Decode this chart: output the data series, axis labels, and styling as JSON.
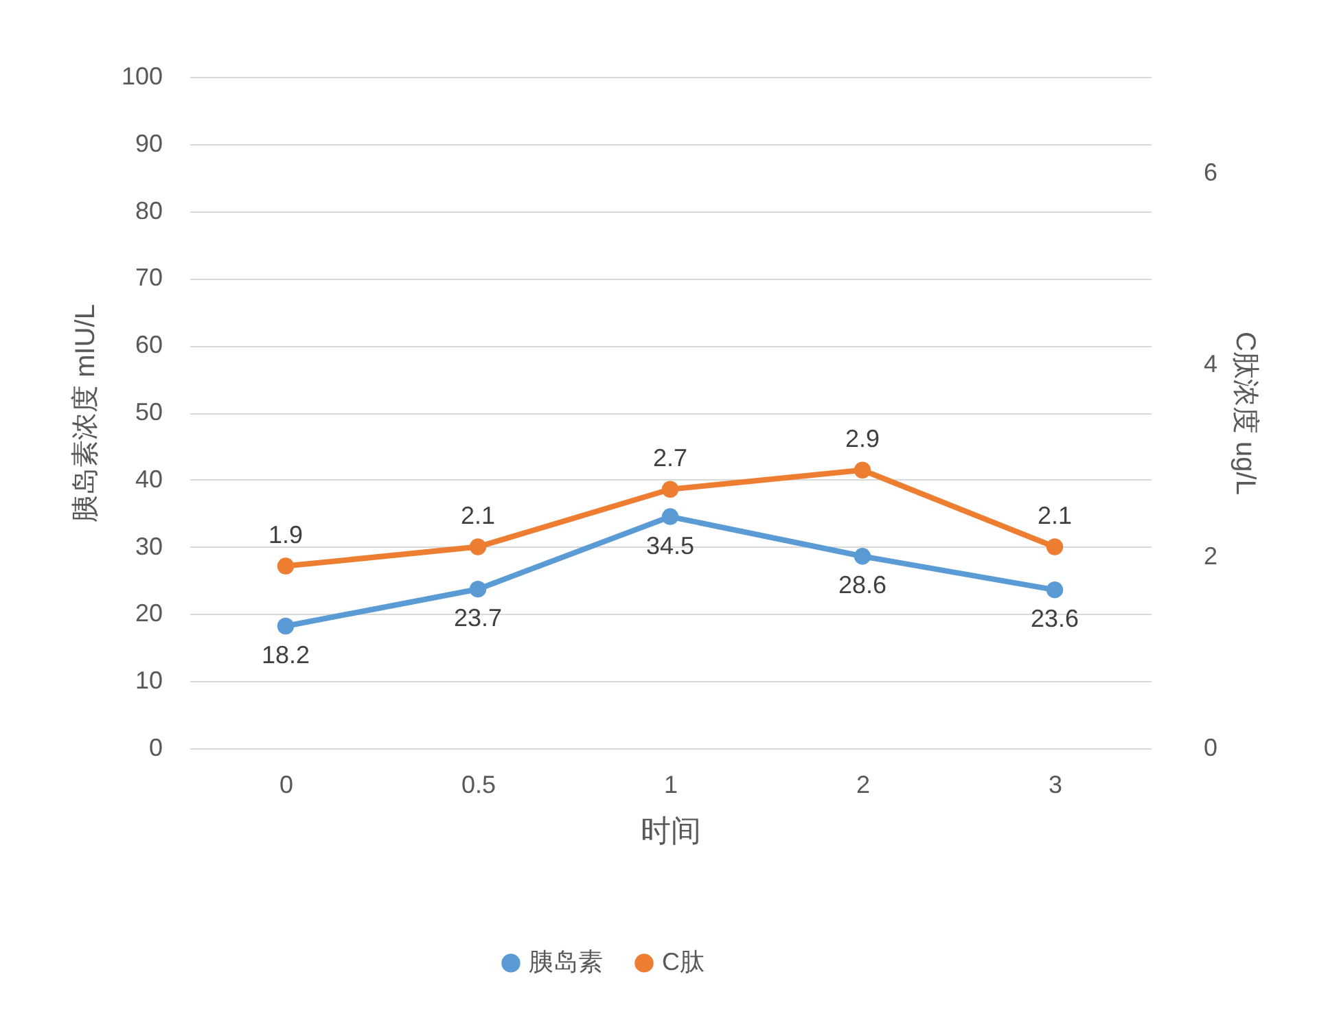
{
  "chart_data": {
    "type": "line",
    "xlabel": "时间",
    "ylabel": "胰岛素浓度   mIU/L",
    "y2label": "C肽浓度   ug/L",
    "categories": [
      "0",
      "0.5",
      "1",
      "2",
      "3"
    ],
    "series": [
      {
        "name": "胰岛素",
        "color": "#5b9bd5",
        "values": [
          18.2,
          23.7,
          34.5,
          28.6,
          23.6
        ]
      },
      {
        "name": "C肽",
        "color": "#ed7d31",
        "values": [
          1.9,
          2.1,
          2.7,
          2.9,
          2.1
        ],
        "axis": "y2"
      }
    ],
    "ylim": [
      0,
      100
    ],
    "yticks": [
      0,
      10,
      20,
      30,
      40,
      50,
      60,
      70,
      80,
      90,
      100
    ],
    "y2lim": [
      0,
      7
    ],
    "y2ticks": [
      0,
      2,
      4,
      6
    ],
    "grid": "y",
    "legend": "bottom",
    "marker": "circle",
    "data_labels": true
  }
}
